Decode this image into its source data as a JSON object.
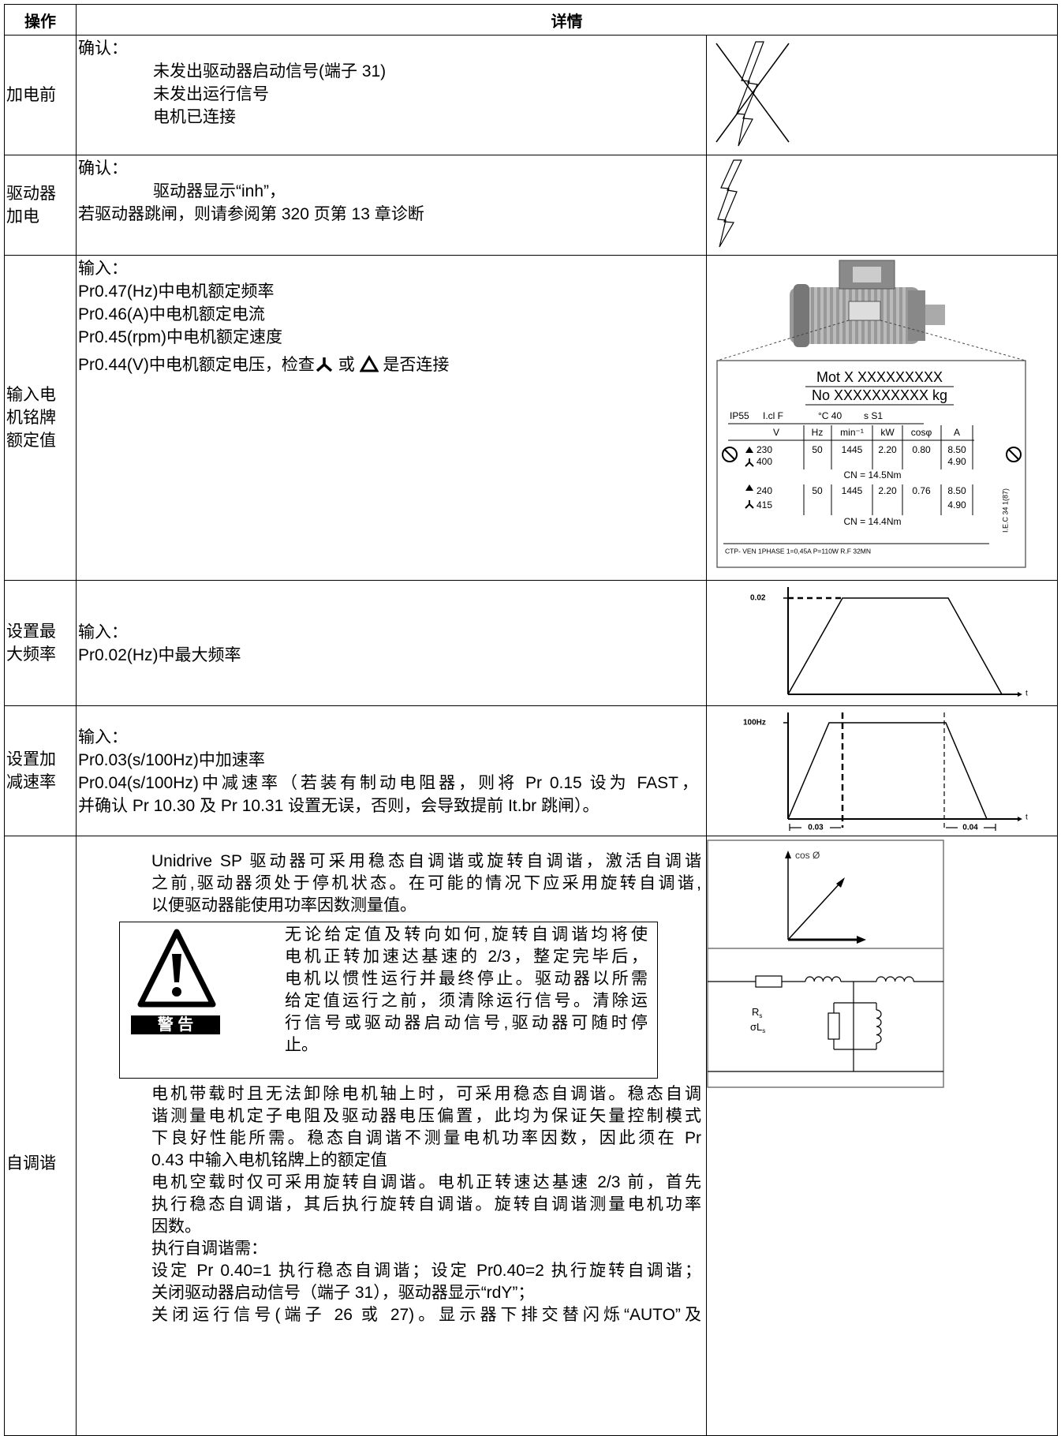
{
  "header": {
    "action": "操作",
    "details": "详情"
  },
  "rows": [
    {
      "action": "加电前",
      "lines": [
        "确认：",
        "未发出驱动器启动信号(端子 31)",
        "未发出运行信号",
        "电机已连接"
      ]
    },
    {
      "action": "驱动器加电",
      "lines": [
        "确认：",
        "驱动器显示“inh”，",
        "若驱动器跳闸，则请参阅第 320 页第 13 章诊断"
      ]
    },
    {
      "action": "输入电机铭牌额定值",
      "lines": [
        "输入：",
        "Pr0.47(Hz)中电机额定频率",
        "Pr0.46(A)中电机额定电流",
        "Pr0.45(rpm)中电机额定速度"
      ],
      "voltage_line": {
        "text": "Pr0.44(V)中电机额定电压，检查",
        "or": "或",
        "end": "是否连接"
      },
      "nameplate": {
        "mot": "Mot X XXXXXXXXX",
        "no": "No XXXXXXXXXX kg",
        "ip": "IP55",
        "cl": "I.cl F",
        "temp": "°C 40",
        "duty": "s S1",
        "headers": [
          "V",
          "Hz",
          "min⁻¹",
          "kW",
          "cosφ",
          "A"
        ],
        "sets": [
          {
            "v": [
              "230",
              "400"
            ],
            "hz": "50",
            "rpm": "1445",
            "kw": "2.20",
            "cos": "0.80",
            "a": [
              "8.50",
              "4.90"
            ],
            "cn": "CN = 14.5Nm"
          },
          {
            "v": [
              "240",
              "415"
            ],
            "hz": "50",
            "rpm": "1445",
            "kw": "2.20",
            "cos": "0.76",
            "a": [
              "8.50",
              "4.90"
            ],
            "cn": "CN = 14.4Nm"
          }
        ],
        "footer": "CTP- VEN 1PHASE 1=0,45A P=110W R.F 32MN",
        "iec": "I.E.C 34 1(87)"
      }
    },
    {
      "action": "设置最大频率",
      "lines": [
        "输入：",
        "Pr0.02(Hz)中最大频率"
      ],
      "figure": {
        "level": "0.02",
        "axis": "t"
      }
    },
    {
      "action": "设置加减速率",
      "lines": [
        "输入：",
        "Pr0.03(s/100Hz)中加速率",
        "Pr0.04(s/100Hz)中减速率（若装有制动电阻器，则将 Pr 0.15 设为 FAST，",
        "并确认 Pr 10.30 及 Pr 10.31 设置无误，否则，会导致提前 It.br 跳闸）。"
      ],
      "figure": {
        "level": "100Hz",
        "accel": "0.03",
        "decel": "0.04",
        "axis": "t"
      }
    },
    {
      "action": "自调谐",
      "intro": [
        "Unidrive SP 驱动器可采用稳态自调谐或旋转自调谐，激活自调谐",
        "之前,驱动器须处于停机状态。在可能的情况下应采用旋转自调谐,",
        "以便驱动器能使用功率因数测量值。"
      ],
      "warning": {
        "label": "警 告",
        "lines": [
          "无论给定值及转向如何,旋转自调谐均将使",
          "电机正转加速达基速的 2/3，整定完毕后，",
          "电机以惯性运行并最终停止。驱动器以所需",
          "给定值运行之前，须清除运行信号。清除运",
          "行信号或驱动器启动信号,驱动器可随时停",
          "止。"
        ]
      },
      "lines": [
        "电机带载时且无法卸除电机轴上时，可采用稳态自调谐。稳态自调",
        "谐测量电机定子电阻及驱动器电压偏置，此均为保证矢量控制模式",
        "下良好性能所需。稳态自调谐不测量电机功率因数，因此须在 Pr",
        "0.43 中输入电机铭牌上的额定值",
        "电机空载时仅可采用旋转自调谐。电机正转速达基速 2/3 前，首先",
        "执行稳态自调谐，其后执行旋转自调谐。旋转自调谐测量电机功率",
        "因数。",
        "执行自调谐需：",
        "设定 Pr 0.40=1 执行稳态自调谐；设定 Pr0.40=2 执行旋转自调谐；",
        "关闭驱动器启动信号（端子 31），驱动器显示“rdY”；",
        "关闭运行信号(端子 26 或 27)。显示器下排交替闪烁“AUTO”及"
      ],
      "figure": {
        "cos": "cos Ø",
        "r": "R",
        "r_sub": "s",
        "l": "σL",
        "l_sub": "s"
      }
    }
  ]
}
